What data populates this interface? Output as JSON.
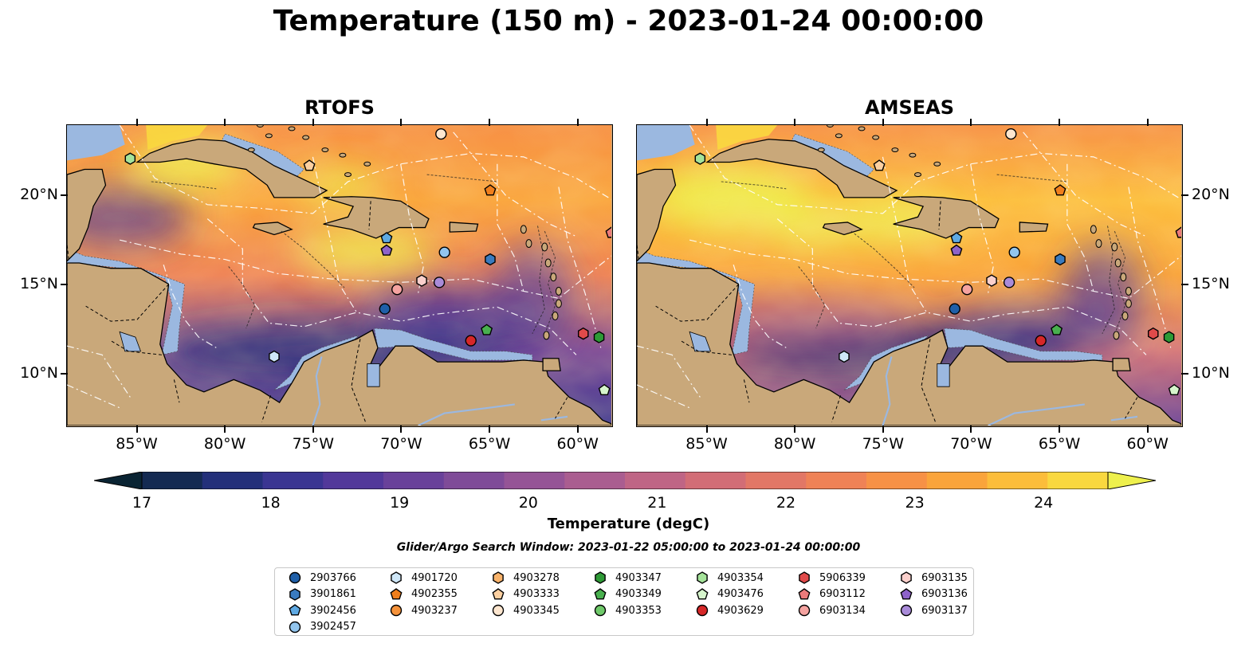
{
  "title": "Temperature (150 m) - 2023-01-24 00:00:00",
  "panels": [
    {
      "title": "RTOFS",
      "hot_spots": [
        [
          0.55,
          0.42,
          0.13,
          0.07
        ],
        [
          0.22,
          0.13,
          0.11,
          0.08
        ],
        [
          0.5,
          0.2,
          0.08,
          0.05
        ]
      ]
    },
    {
      "title": "AMSEAS",
      "hot_spots": [
        [
          0.17,
          0.24,
          0.15,
          0.11
        ],
        [
          0.33,
          0.34,
          0.09,
          0.06
        ],
        [
          0.48,
          0.32,
          0.12,
          0.07
        ]
      ]
    }
  ],
  "axes": {
    "x_ticks": [
      "85°W",
      "80°W",
      "75°W",
      "70°W",
      "65°W",
      "60°W"
    ],
    "x_tick_values": [
      -85,
      -80,
      -75,
      -70,
      -65,
      -60
    ],
    "y_ticks": [
      "20°N",
      "15°N",
      "10°N"
    ],
    "y_tick_values": [
      20,
      15,
      10
    ],
    "lon_range": [
      -89,
      -58
    ],
    "lat_range": [
      7,
      24
    ]
  },
  "colorbar": {
    "label": "Temperature (degC)",
    "ticks": [
      "17",
      "18",
      "19",
      "20",
      "21",
      "22",
      "23",
      "24"
    ],
    "range": [
      17,
      24.5
    ],
    "colors": [
      "#0a2433",
      "#142a52",
      "#23307a",
      "#3a3592",
      "#52389a",
      "#69419a",
      "#7f4b98",
      "#955496",
      "#aa5d90",
      "#bf6585",
      "#d26d76",
      "#e27766",
      "#ef8256",
      "#f79146",
      "#faa43b",
      "#fcbd3a",
      "#f9d83f",
      "#eef04d"
    ]
  },
  "window_text": "Glider/Argo Search Window: 2023-01-22 05:00:00 to 2023-01-24 00:00:00",
  "legend": {
    "columns": [
      [
        {
          "id": "2903766",
          "marker": "circle",
          "color": "#1f5fa8"
        },
        {
          "id": "3901861",
          "marker": "hexagon",
          "color": "#3a7bbf"
        },
        {
          "id": "3902456",
          "marker": "pentagon",
          "color": "#5ea9e3"
        },
        {
          "id": "3902457",
          "marker": "circle",
          "color": "#92c5ee"
        }
      ],
      [
        {
          "id": "4901720",
          "marker": "hexagon",
          "color": "#cfe7f8"
        },
        {
          "id": "4902355",
          "marker": "pentagon",
          "color": "#f07f1c"
        },
        {
          "id": "4903237",
          "marker": "circle",
          "color": "#f5923a"
        }
      ],
      [
        {
          "id": "4903278",
          "marker": "hexagon",
          "color": "#f9b36b"
        },
        {
          "id": "4903333",
          "marker": "pentagon",
          "color": "#fcd0a1"
        },
        {
          "id": "4903345",
          "marker": "circle",
          "color": "#fde6cf"
        }
      ],
      [
        {
          "id": "4903347",
          "marker": "hexagon",
          "color": "#2e9a36"
        },
        {
          "id": "4903349",
          "marker": "pentagon",
          "color": "#49b04f"
        },
        {
          "id": "4903353",
          "marker": "circle",
          "color": "#6fc96a"
        }
      ],
      [
        {
          "id": "4903354",
          "marker": "hexagon",
          "color": "#a5e39a"
        },
        {
          "id": "4903476",
          "marker": "pentagon",
          "color": "#d6f5cc"
        },
        {
          "id": "4903629",
          "marker": "circle",
          "color": "#d62728"
        }
      ],
      [
        {
          "id": "5906339",
          "marker": "hexagon",
          "color": "#e04a4a"
        },
        {
          "id": "6903112",
          "marker": "pentagon",
          "color": "#ec7b7b"
        },
        {
          "id": "6903134",
          "marker": "circle",
          "color": "#f5a3a0"
        }
      ],
      [
        {
          "id": "6903135",
          "marker": "hexagon",
          "color": "#fbd0cc"
        },
        {
          "id": "6903136",
          "marker": "pentagon",
          "color": "#8e63c9"
        },
        {
          "id": "6903137",
          "marker": "circle",
          "color": "#a98bd9"
        }
      ]
    ]
  },
  "floats": [
    {
      "id": "4903354",
      "marker": "hexagon",
      "color": "#a5e39a",
      "lon": -85.4,
      "lat": 22.1
    },
    {
      "id": "4903333",
      "marker": "pentagon",
      "color": "#fcd0a1",
      "lon": -75.2,
      "lat": 21.7
    },
    {
      "id": "4903345",
      "marker": "circle",
      "color": "#fde6cf",
      "lon": -67.7,
      "lat": 23.5
    },
    {
      "id": "4902355",
      "marker": "pentagon",
      "color": "#f07f1c",
      "lon": -64.9,
      "lat": 20.3
    },
    {
      "id": "6903112",
      "marker": "pentagon",
      "color": "#ec7b7b",
      "lon": -58.0,
      "lat": 17.9
    },
    {
      "id": "3902456",
      "marker": "pentagon",
      "color": "#5ea9e3",
      "lon": -70.8,
      "lat": 17.6
    },
    {
      "id": "6903136",
      "marker": "pentagon",
      "color": "#8e63c9",
      "lon": -70.8,
      "lat": 16.9
    },
    {
      "id": "3902457",
      "marker": "circle",
      "color": "#92c5ee",
      "lon": -67.5,
      "lat": 16.8
    },
    {
      "id": "3901861",
      "marker": "hexagon",
      "color": "#3a7bbf",
      "lon": -64.9,
      "lat": 16.4
    },
    {
      "id": "6903135",
      "marker": "hexagon",
      "color": "#fbd0cc",
      "lon": -68.8,
      "lat": 15.2
    },
    {
      "id": "6903137",
      "marker": "circle",
      "color": "#a98bd9",
      "lon": -67.8,
      "lat": 15.1
    },
    {
      "id": "6903134",
      "marker": "circle",
      "color": "#f5a3a0",
      "lon": -70.2,
      "lat": 14.7
    },
    {
      "id": "2903766",
      "marker": "circle",
      "color": "#1f5fa8",
      "lon": -70.9,
      "lat": 13.6
    },
    {
      "id": "4903349",
      "marker": "pentagon",
      "color": "#49b04f",
      "lon": -65.1,
      "lat": 12.4
    },
    {
      "id": "4903629",
      "marker": "circle",
      "color": "#d62728",
      "lon": -66.0,
      "lat": 11.8
    },
    {
      "id": "5906339",
      "marker": "hexagon",
      "color": "#e04a4a",
      "lon": -59.6,
      "lat": 12.2
    },
    {
      "id": "4903347",
      "marker": "hexagon",
      "color": "#2e9a36",
      "lon": -58.7,
      "lat": 12.0
    },
    {
      "id": "4901720",
      "marker": "hexagon",
      "color": "#cfe7f8",
      "lon": -77.2,
      "lat": 10.9
    },
    {
      "id": "4903476",
      "marker": "pentagon",
      "color": "#d6f5cc",
      "lon": -58.4,
      "lat": 9.0
    }
  ],
  "map_colors": {
    "land": "#c9a87a",
    "water": "#9bb8e0",
    "deep": "#0b2533"
  }
}
